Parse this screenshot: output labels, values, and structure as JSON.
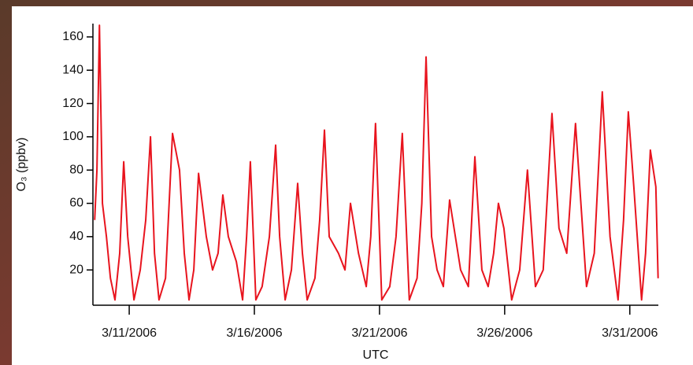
{
  "chart_data": {
    "type": "line",
    "y_label": "O₃ (ppbv)",
    "x_label": "UTC",
    "x": [
      9.62,
      9.71,
      9.81,
      9.93,
      10.09,
      10.25,
      10.43,
      10.62,
      10.78,
      10.94,
      11.19,
      11.44,
      11.66,
      11.85,
      12.01,
      12.19,
      12.45,
      12.73,
      13.01,
      13.2,
      13.39,
      13.58,
      13.77,
      14.08,
      14.33,
      14.55,
      14.74,
      14.96,
      15.28,
      15.53,
      15.69,
      15.84,
      16.06,
      16.31,
      16.6,
      16.85,
      17.01,
      17.23,
      17.48,
      17.73,
      17.92,
      18.11,
      18.42,
      18.61,
      18.8,
      18.99,
      19.36,
      19.62,
      19.84,
      20.16,
      20.47,
      20.65,
      20.84,
      21.09,
      21.41,
      21.66,
      21.91,
      22.19,
      22.5,
      22.69,
      22.86,
      23.08,
      23.3,
      23.55,
      23.8,
      24.24,
      24.55,
      24.81,
      25.09,
      25.34,
      25.56,
      25.75,
      25.97,
      26.28,
      26.6,
      26.91,
      27.23,
      27.54,
      27.89,
      28.17,
      28.48,
      28.83,
      29.27,
      29.58,
      29.9,
      30.21,
      30.53,
      30.75,
      30.94,
      31.16,
      31.47,
      31.63,
      31.82,
      32.04,
      32.13
    ],
    "series": [
      {
        "color": "#e8141e",
        "values": [
          50,
          80,
          167,
          60,
          40,
          15,
          2,
          30,
          85,
          40,
          2,
          20,
          50,
          100,
          30,
          2,
          15,
          102,
          80,
          30,
          2,
          20,
          78,
          40,
          20,
          30,
          65,
          40,
          25,
          2,
          40,
          85,
          2,
          10,
          40,
          95,
          40,
          2,
          20,
          72,
          30,
          2,
          15,
          50,
          104,
          40,
          30,
          20,
          60,
          30,
          10,
          40,
          108,
          2,
          10,
          40,
          102,
          2,
          15,
          60,
          148,
          40,
          20,
          10,
          62,
          20,
          10,
          88,
          20,
          10,
          30,
          60,
          45,
          2,
          20,
          80,
          10,
          20,
          114,
          45,
          30,
          108,
          10,
          30,
          127,
          40,
          2,
          50,
          115,
          70,
          2,
          30,
          92,
          70,
          15
        ]
      }
    ],
    "xlim": [
      9.55,
      32.14
    ],
    "ylim": [
      -1.2,
      168
    ],
    "xticks": [
      {
        "value": 11,
        "label": "3/11/2006"
      },
      {
        "value": 16,
        "label": "3/16/2006"
      },
      {
        "value": 21,
        "label": "3/21/2006"
      },
      {
        "value": 26,
        "label": "3/26/2006"
      },
      {
        "value": 31,
        "label": "3/31/2006"
      }
    ],
    "yticks": [
      20,
      40,
      60,
      80,
      100,
      120,
      140,
      160
    ]
  }
}
